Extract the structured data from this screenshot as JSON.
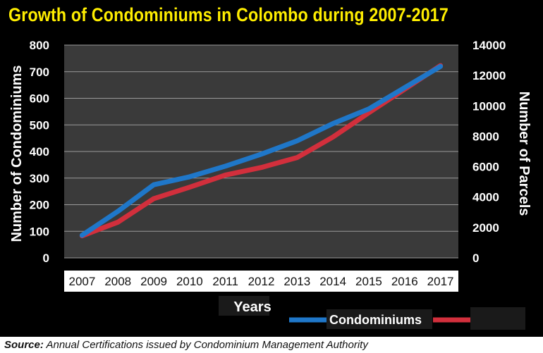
{
  "title": "Growth of Condominiums in Colombo during 2007-2017",
  "source": {
    "label": "Source:",
    "text": "Annual Certifications issued by Condominium Management Authority"
  },
  "colors": {
    "background": "#000000",
    "title": "#ffee00",
    "plot_area": "#3a3a3a",
    "condominiums": "#1f77c9",
    "parcels": "#d22f3c",
    "text": "#ffffff"
  },
  "chart_data": {
    "type": "line",
    "title": "Growth of Condominiums in Colombo during 2007-2017",
    "xlabel": "Years",
    "ylabel": "Number of Condominiums",
    "y2label": "Number of Parcels",
    "categories": [
      "2007",
      "2008",
      "2009",
      "2010",
      "2011",
      "2012",
      "2013",
      "2014",
      "2015",
      "2016",
      "2017"
    ],
    "ylim": [
      0,
      800
    ],
    "y2lim": [
      0,
      14000
    ],
    "yticks": [
      0,
      100,
      200,
      300,
      400,
      500,
      600,
      700,
      800
    ],
    "y2ticks": [
      0,
      2000,
      4000,
      6000,
      8000,
      10000,
      12000,
      14000
    ],
    "grid": true,
    "legend_position": "bottom-right",
    "series": [
      {
        "name": "Condominiums",
        "axis": "left",
        "color": "#1f77c9",
        "values": [
          85,
          175,
          275,
          305,
          345,
          390,
          440,
          505,
          560,
          640,
          720
        ]
      },
      {
        "name": "",
        "axis": "right",
        "color": "#d22f3c",
        "values": [
          1450,
          2350,
          3900,
          4650,
          5450,
          5950,
          6600,
          7950,
          9550,
          11100,
          12650
        ]
      }
    ]
  }
}
